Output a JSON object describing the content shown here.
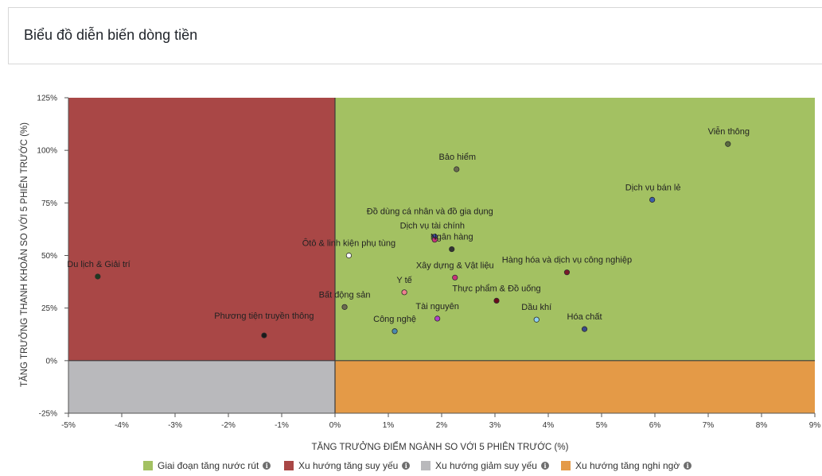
{
  "header": {
    "title": "Biểu đồ diễn biến dòng tiền"
  },
  "colors": {
    "green": "#a3c162",
    "red": "#a94746",
    "gray": "#b9b9bc",
    "orange": "#e49a47"
  },
  "legend": [
    {
      "label": "Giai đoạn tăng nước rút",
      "color": "#a3c162",
      "icon": "info-icon"
    },
    {
      "label": "Xu hướng tăng suy yếu",
      "color": "#a94746",
      "icon": "info-icon"
    },
    {
      "label": "Xu hướng giảm suy yếu",
      "color": "#b9b9bc",
      "icon": "info-icon"
    },
    {
      "label": "Xu hướng tăng nghi ngờ",
      "color": "#e49a47",
      "icon": "info-icon"
    }
  ],
  "chart_data": {
    "type": "scatter",
    "xlabel": "TĂNG TRƯỞNG ĐIỂM NGÀNH SO VỚI 5 PHIÊN TRƯỚC (%)",
    "ylabel": "TĂNG TRƯỞNG THANH KHOẢN SO VỚI 5 PHIÊN TRƯỚC (%)",
    "xlim": [
      -5,
      9
    ],
    "ylim": [
      -25,
      125
    ],
    "x_ticks": [
      -5,
      -4,
      -3,
      -2,
      -1,
      0,
      1,
      2,
      3,
      4,
      5,
      6,
      7,
      8,
      9
    ],
    "x_tick_labels": [
      "-5%",
      "-4%",
      "-3%",
      "-2%",
      "-1%",
      "0%",
      "1%",
      "2%",
      "3%",
      "4%",
      "5%",
      "6%",
      "7%",
      "8%",
      "9%"
    ],
    "y_ticks": [
      -25,
      0,
      25,
      50,
      75,
      100,
      125
    ],
    "y_tick_labels": [
      "-25%",
      "0%",
      "25%",
      "50%",
      "75%",
      "100%",
      "125%"
    ],
    "quadrants": [
      {
        "name": "Xu hướng tăng suy yếu",
        "x": [
          -5,
          0
        ],
        "y": [
          0,
          125
        ],
        "color": "#a94746"
      },
      {
        "name": "Giai đoạn tăng nước rút",
        "x": [
          0,
          9
        ],
        "y": [
          0,
          125
        ],
        "color": "#a3c162"
      },
      {
        "name": "Xu hướng giảm suy yếu",
        "x": [
          -5,
          0
        ],
        "y": [
          -25,
          0
        ],
        "color": "#b9b9bc"
      },
      {
        "name": "Xu hướng tăng nghi ngờ",
        "x": [
          0,
          9
        ],
        "y": [
          -25,
          0
        ],
        "color": "#e49a47"
      }
    ],
    "points": [
      {
        "label": "Viễn thông",
        "x": 7.37,
        "y": 103,
        "color": "#5a6b3f"
      },
      {
        "label": "Bảo hiểm",
        "x": 2.28,
        "y": 91,
        "color": "#6b6b50"
      },
      {
        "label": "Dịch vụ bán lẻ",
        "x": 5.95,
        "y": 76.5,
        "color": "#3b5faa"
      },
      {
        "label": "Đồ dùng cá nhân và đồ gia dụng",
        "x": 1.87,
        "y": 59,
        "color": "#3a4aa0"
      },
      {
        "label": "Dịch vụ tài chính",
        "x": 1.87,
        "y": 57.5,
        "color": "#c8327a"
      },
      {
        "label": "Ngân hàng",
        "x": 2.19,
        "y": 53,
        "color": "#333333"
      },
      {
        "label": "Ôtô & linh kiện phụ tùng",
        "x": 0.26,
        "y": 50,
        "color": "#ffffff"
      },
      {
        "label": "Du lịch & Giải trí",
        "x": -4.45,
        "y": 40,
        "color": "#1f3a1f"
      },
      {
        "label": "Xây dựng & Vật liệu",
        "x": 2.25,
        "y": 39.5,
        "color": "#c8327a"
      },
      {
        "label": "Hàng hóa và dịch vụ công nghiệp",
        "x": 4.35,
        "y": 42,
        "color": "#7a1a2a"
      },
      {
        "label": "Y tế",
        "x": 1.3,
        "y": 32.5,
        "color": "#f08090"
      },
      {
        "label": "Thực phẩm & Đồ uống",
        "x": 3.03,
        "y": 28.5,
        "color": "#6a0a1a"
      },
      {
        "label": "Bất động sản",
        "x": 0.18,
        "y": 25.5,
        "color": "#6b6b50"
      },
      {
        "label": "Tài nguyên",
        "x": 1.92,
        "y": 20,
        "color": "#b040c8"
      },
      {
        "label": "Dầu khí",
        "x": 3.78,
        "y": 19.5,
        "color": "#8fd0f0"
      },
      {
        "label": "Hóa chất",
        "x": 4.68,
        "y": 15,
        "color": "#3a4a8a"
      },
      {
        "label": "Công nghệ",
        "x": 1.12,
        "y": 14,
        "color": "#4a8ab0"
      },
      {
        "label": "Phương tiện truyền thông",
        "x": -1.33,
        "y": 12,
        "color": "#1a1a1a"
      }
    ]
  }
}
